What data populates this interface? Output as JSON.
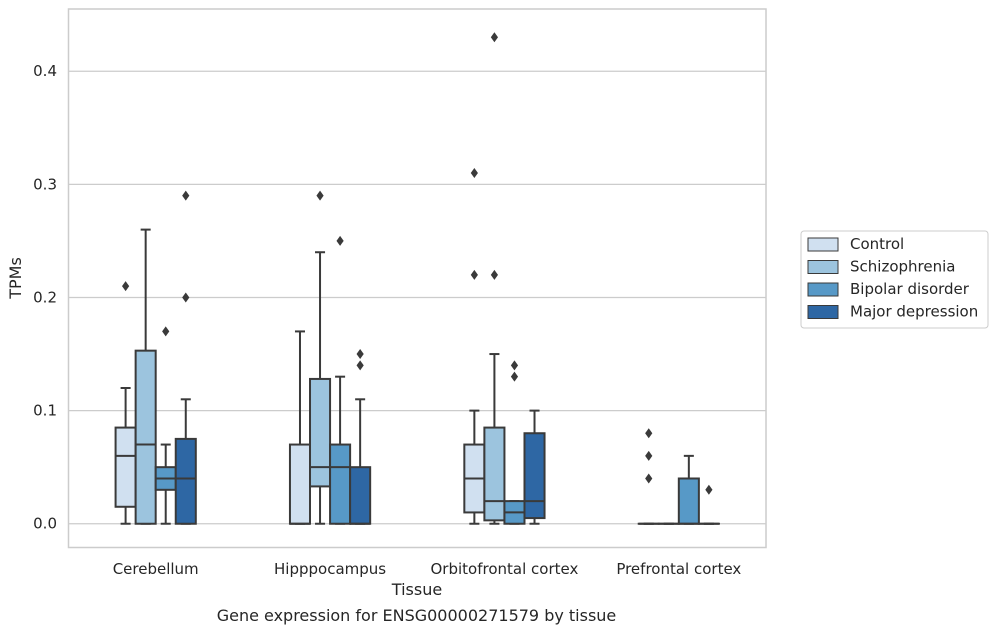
{
  "caption": "Gene expression for ENSG00000271579 by tissue",
  "chart_data": {
    "type": "box",
    "xlabel": "Tissue",
    "ylabel": "TPMs",
    "ylim": [
      -0.021,
      0.455
    ],
    "yticks": [
      0.0,
      0.1,
      0.2,
      0.3,
      0.4
    ],
    "ytick_labels": [
      "0.0",
      "0.1",
      "0.2",
      "0.3",
      "0.4"
    ],
    "grid": "horizontal",
    "legend_position": "right",
    "categories": [
      "Cerebellum",
      "Hipppocampus",
      "Orbitofrontal cortex",
      "Prefrontal cortex"
    ],
    "series": [
      {
        "name": "Control",
        "color": "#d0e0f0",
        "boxes": [
          {
            "whislo": 0.0,
            "q1": 0.015,
            "med": 0.06,
            "q3": 0.085,
            "whishi": 0.12,
            "fliers": [
              0.21
            ]
          },
          {
            "whislo": 0.0,
            "q1": 0.0,
            "med": 0.0,
            "q3": 0.07,
            "whishi": 0.17,
            "fliers": []
          },
          {
            "whislo": 0.0,
            "q1": 0.01,
            "med": 0.04,
            "q3": 0.07,
            "whishi": 0.1,
            "fliers": [
              0.31,
              0.22
            ]
          },
          {
            "whislo": 0.0,
            "q1": 0.0,
            "med": 0.0,
            "q3": 0.0,
            "whishi": 0.0,
            "fliers": [
              0.04,
              0.06,
              0.08
            ]
          }
        ]
      },
      {
        "name": "Schizophrenia",
        "color": "#9cc4de",
        "boxes": [
          {
            "whislo": 0.0,
            "q1": 0.0,
            "med": 0.07,
            "q3": 0.153,
            "whishi": 0.26,
            "fliers": []
          },
          {
            "whislo": 0.0,
            "q1": 0.033,
            "med": 0.05,
            "q3": 0.128,
            "whishi": 0.24,
            "fliers": [
              0.29
            ]
          },
          {
            "whislo": 0.0,
            "q1": 0.003,
            "med": 0.02,
            "q3": 0.085,
            "whishi": 0.15,
            "fliers": [
              0.22,
              0.43
            ]
          },
          {
            "whislo": 0.0,
            "q1": 0.0,
            "med": 0.0,
            "q3": 0.0,
            "whishi": 0.0,
            "fliers": []
          }
        ]
      },
      {
        "name": "Bipolar disorder",
        "color": "#5799c7",
        "boxes": [
          {
            "whislo": 0.0,
            "q1": 0.03,
            "med": 0.04,
            "q3": 0.05,
            "whishi": 0.07,
            "fliers": [
              0.17
            ]
          },
          {
            "whislo": 0.0,
            "q1": 0.0,
            "med": 0.05,
            "q3": 0.07,
            "whishi": 0.13,
            "fliers": [
              0.25
            ]
          },
          {
            "whislo": 0.0,
            "q1": 0.0,
            "med": 0.01,
            "q3": 0.02,
            "whishi": 0.02,
            "fliers": [
              0.13,
              0.14
            ]
          },
          {
            "whislo": 0.0,
            "q1": 0.0,
            "med": 0.0,
            "q3": 0.04,
            "whishi": 0.06,
            "fliers": []
          }
        ]
      },
      {
        "name": "Major depression",
        "color": "#2e67a4",
        "boxes": [
          {
            "whislo": 0.0,
            "q1": 0.0,
            "med": 0.04,
            "q3": 0.075,
            "whishi": 0.11,
            "fliers": [
              0.2,
              0.29
            ]
          },
          {
            "whislo": 0.0,
            "q1": 0.0,
            "med": 0.0,
            "q3": 0.05,
            "whishi": 0.11,
            "fliers": [
              0.14,
              0.15
            ]
          },
          {
            "whislo": 0.0,
            "q1": 0.005,
            "med": 0.02,
            "q3": 0.08,
            "whishi": 0.1,
            "fliers": []
          },
          {
            "whislo": 0.0,
            "q1": 0.0,
            "med": 0.0,
            "q3": 0.0,
            "whishi": 0.0,
            "fliers": [
              0.03
            ]
          }
        ]
      }
    ]
  }
}
